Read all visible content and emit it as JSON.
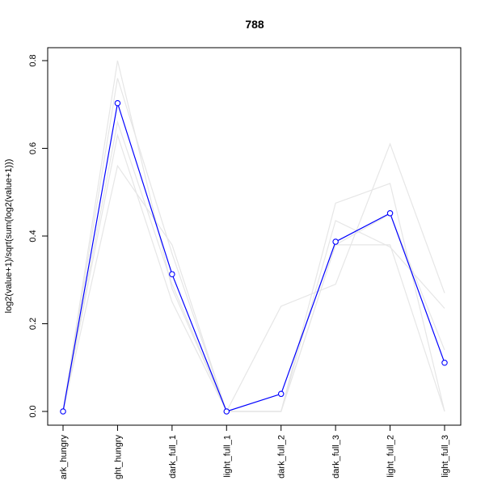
{
  "chart_data": {
    "type": "line",
    "title": "788",
    "xlabel": "",
    "ylabel": "log2(value+1)/sqrt(sum(log2(value+1)))",
    "categories": [
      "dark_hungry",
      "light_hungry",
      "dark_full_1",
      "light_full_1",
      "dark_full_2",
      "dark_full_3",
      "light_full_2",
      "light_full_3"
    ],
    "tick_labels": [
      "ark_hungry",
      "ght_hungry",
      "dark_full_1",
      "light_full_1",
      "dark_full_2",
      "dark_full_3",
      "light_full_2",
      "light_full_3"
    ],
    "ylim": [
      0,
      0.8
    ],
    "yticks": [
      0.0,
      0.2,
      0.4,
      0.6,
      0.8
    ],
    "ytick_labels": [
      "0.0",
      "0.2",
      "0.4",
      "0.6",
      "0.8"
    ],
    "highlight_color": "#0000ff",
    "background_color": "#e6e6e6",
    "highlight": {
      "values": [
        0.0,
        0.703,
        0.313,
        0.0,
        0.04,
        0.387,
        0.452,
        0.111
      ]
    },
    "background_series": [
      {
        "values": [
          0.0,
          0.8,
          0.28,
          0.0,
          0.0,
          0.475,
          0.52,
          0.0
        ]
      },
      {
        "values": [
          0.0,
          0.76,
          0.36,
          0.0,
          0.0,
          0.38,
          0.38,
          0.0
        ]
      },
      {
        "values": [
          0.0,
          0.63,
          0.25,
          0.0,
          0.24,
          0.29,
          0.61,
          0.27
        ]
      },
      {
        "values": [
          0.0,
          0.56,
          0.38,
          0.0,
          0.0,
          0.435,
          0.375,
          0.235
        ]
      },
      {
        "values": [
          0.0,
          0.66,
          0.29,
          0.0,
          0.0,
          0.38,
          0.45,
          0.14
        ]
      }
    ]
  }
}
